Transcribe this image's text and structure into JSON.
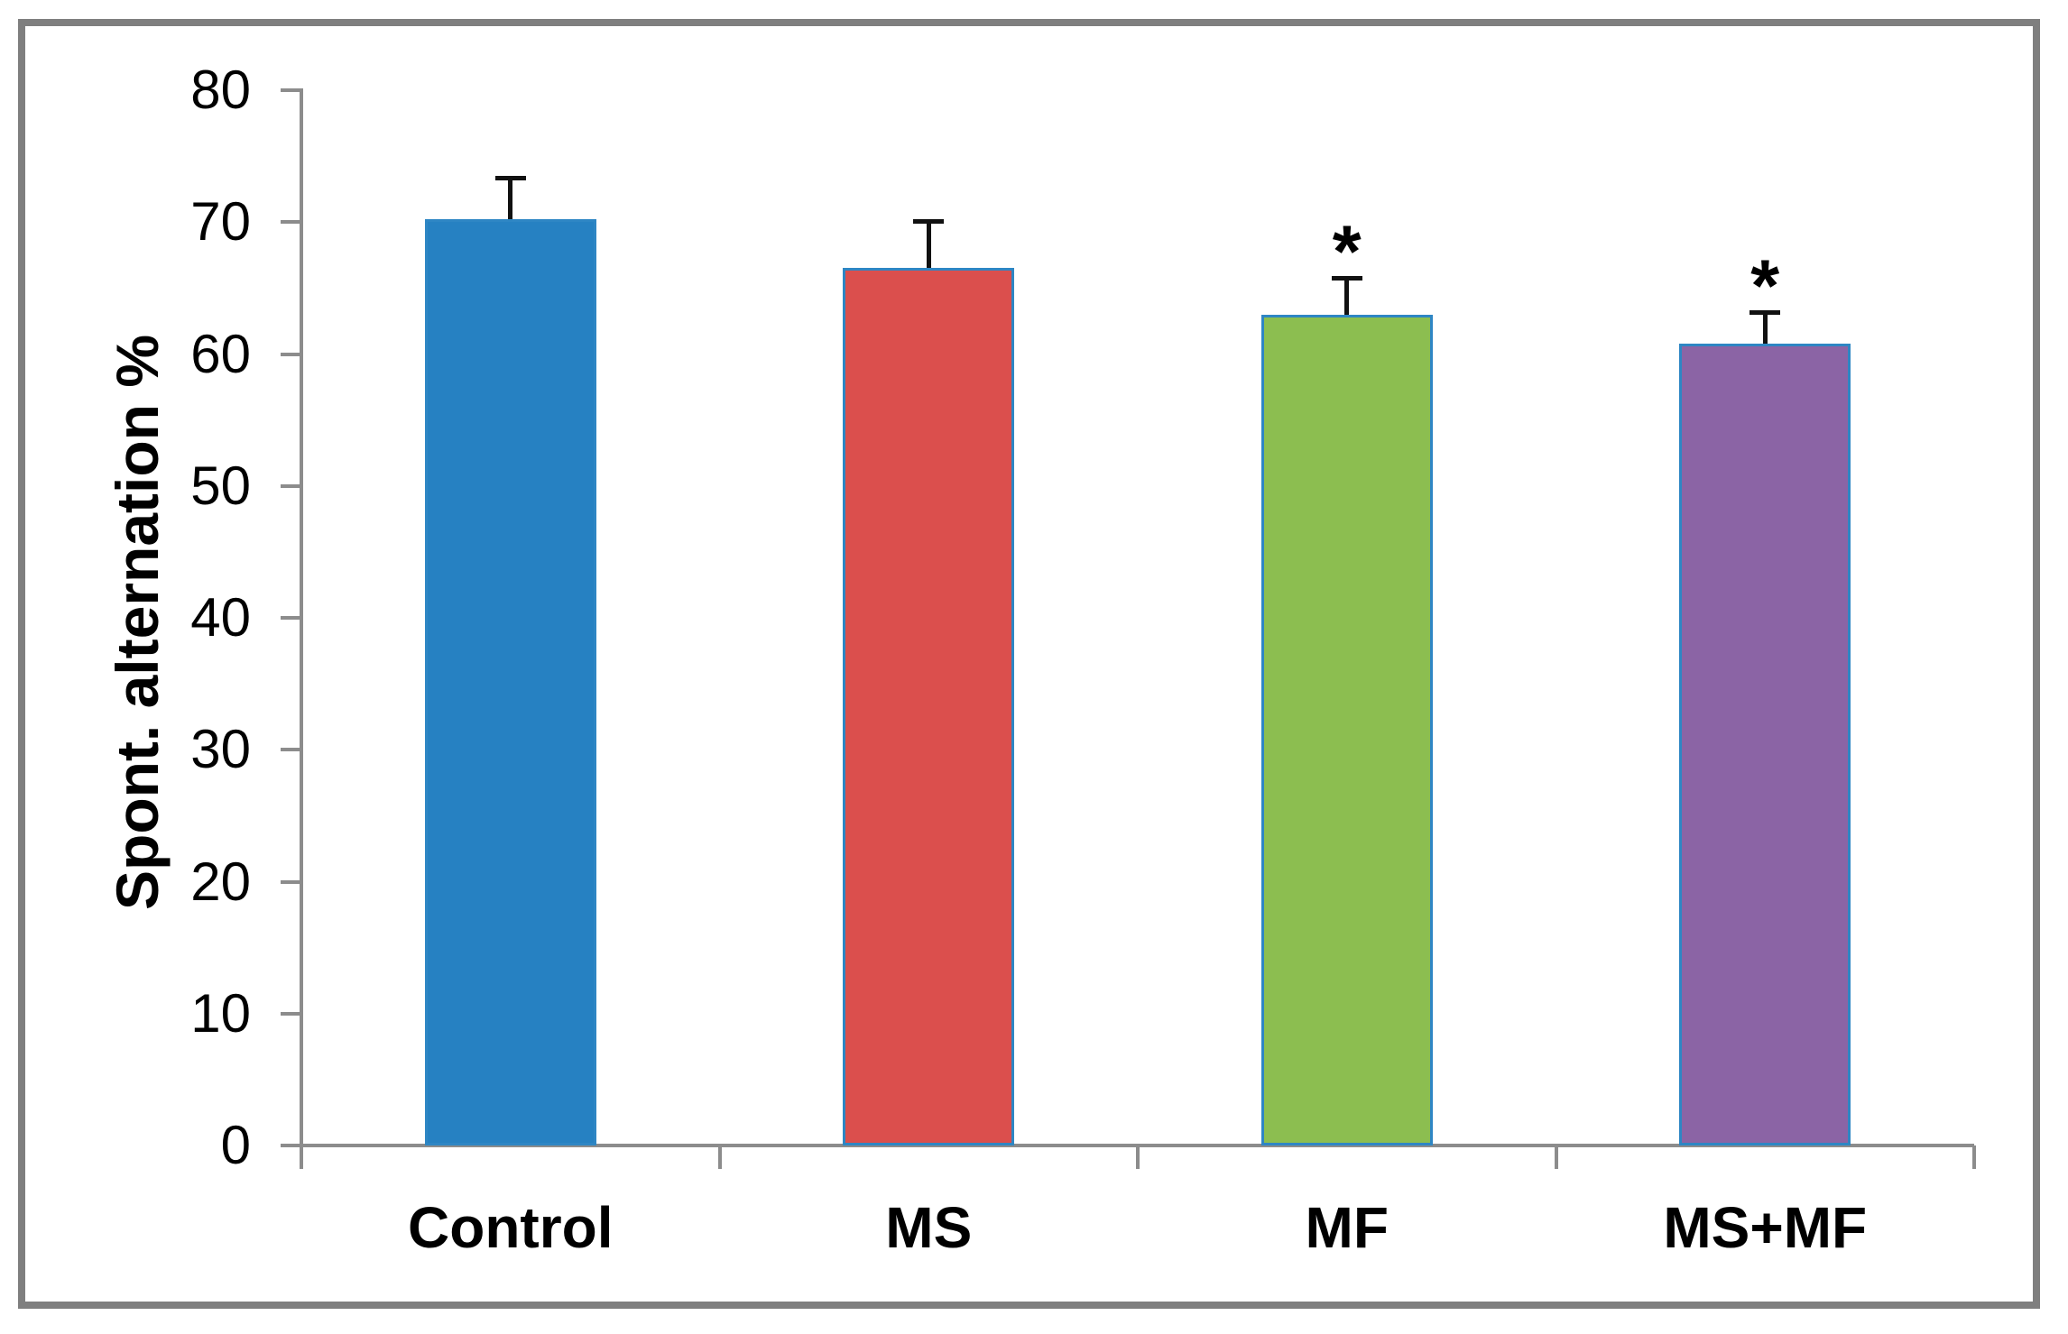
{
  "chart_data": {
    "type": "bar",
    "title": "",
    "xlabel": "",
    "ylabel": "Spont. alternation %",
    "categories": [
      "Control",
      "MS",
      "MF",
      "MS+MF"
    ],
    "values": [
      70.2,
      66.5,
      63.0,
      60.8
    ],
    "errors": [
      3.3,
      3.7,
      2.9,
      2.5
    ],
    "significance": [
      "",
      "",
      "*",
      "*"
    ],
    "bar_colors": [
      "#2681C2",
      "#DB4F4D",
      "#8CBE50",
      "#8B64A5"
    ],
    "bar_border_color": "#2E86C4",
    "ylim": [
      0,
      80
    ],
    "yticks": [
      80,
      70,
      60,
      50,
      40,
      30,
      20,
      10,
      0
    ],
    "ytick_labels": [
      "80",
      "70",
      "60",
      "50",
      "40",
      "30",
      "20",
      "10",
      "0"
    ],
    "grid": false,
    "legend": "none",
    "error_bar_color": "#111111"
  },
  "colors": {
    "frame": "#7F7F7F",
    "axis": "#8C8C8C",
    "text": "#000000",
    "background": "#FFFFFF"
  }
}
